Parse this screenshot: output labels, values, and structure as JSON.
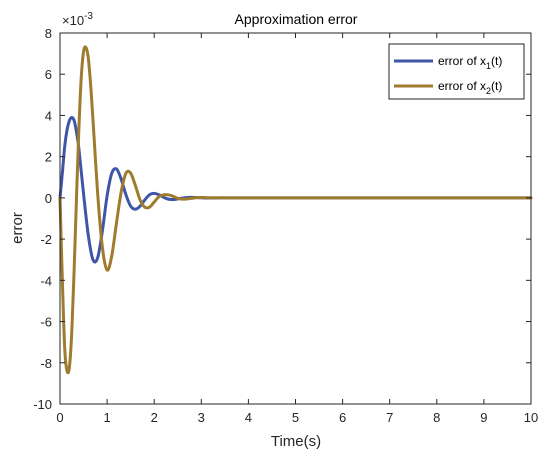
{
  "chart_data": {
    "type": "line",
    "title": "Approximation error",
    "xlabel": "Time(s)",
    "ylabel": "error",
    "exponent_label": "×10",
    "exponent_value": "-3",
    "xlim": [
      0,
      10
    ],
    "ylim": [
      -10,
      8
    ],
    "xticks": [
      "0",
      "1",
      "2",
      "3",
      "4",
      "5",
      "6",
      "7",
      "8",
      "9",
      "10"
    ],
    "yticks": [
      "-10",
      "-8",
      "-6",
      "-4",
      "-2",
      "0",
      "2",
      "4",
      "6",
      "8"
    ],
    "legend_position": "top-right",
    "grid": false,
    "series": [
      {
        "name_prefix": "error of x",
        "name_sub": "1",
        "name_suffix": "(t)",
        "color": "#3f55a8",
        "x": [
          0,
          0.05,
          0.1,
          0.15,
          0.2,
          0.25,
          0.3,
          0.35,
          0.4,
          0.5,
          0.6,
          0.7,
          0.8,
          0.9,
          1.0,
          1.1,
          1.2,
          1.3,
          1.4,
          1.5,
          1.6,
          1.7,
          1.8,
          1.9,
          2.0,
          2.1,
          2.2,
          2.3,
          2.4,
          2.5,
          2.6,
          2.7,
          2.8,
          2.9,
          3.0,
          3.2,
          3.4,
          3.6,
          4.0,
          5.0,
          10.0
        ],
        "y": [
          0,
          1.2,
          2.5,
          3.3,
          3.75,
          3.9,
          3.75,
          3.2,
          2.4,
          0.2,
          -1.8,
          -3.0,
          -2.9,
          -1.6,
          0.1,
          1.2,
          1.4,
          0.9,
          0.15,
          -0.4,
          -0.55,
          -0.4,
          -0.1,
          0.15,
          0.22,
          0.15,
          0.03,
          -0.06,
          -0.08,
          -0.05,
          -0.01,
          0.02,
          0.025,
          0.015,
          0.005,
          -0.005,
          0,
          0,
          0,
          0,
          0
        ]
      },
      {
        "name_prefix": "error of x",
        "name_sub": "2",
        "name_suffix": "(t)",
        "color": "#9e7b2d",
        "x": [
          0,
          0.05,
          0.1,
          0.15,
          0.2,
          0.25,
          0.3,
          0.35,
          0.4,
          0.45,
          0.5,
          0.55,
          0.6,
          0.65,
          0.7,
          0.8,
          0.9,
          1.0,
          1.1,
          1.2,
          1.3,
          1.4,
          1.5,
          1.6,
          1.7,
          1.8,
          1.9,
          2.0,
          2.1,
          2.2,
          2.3,
          2.4,
          2.5,
          2.6,
          2.7,
          2.8,
          2.9,
          3.0,
          3.2,
          3.5,
          4.0,
          5.0,
          10.0
        ],
        "y": [
          0,
          -4.0,
          -7.3,
          -8.4,
          -8.2,
          -6.5,
          -3.5,
          0.0,
          3.3,
          5.8,
          7.1,
          7.3,
          6.8,
          5.5,
          3.8,
          0.2,
          -2.4,
          -3.5,
          -2.8,
          -1.2,
          0.3,
          1.2,
          1.2,
          0.6,
          -0.1,
          -0.45,
          -0.45,
          -0.2,
          0.05,
          0.15,
          0.15,
          0.08,
          -0.02,
          -0.06,
          -0.05,
          -0.02,
          0.01,
          0.02,
          0.005,
          0,
          0,
          0,
          0
        ]
      }
    ]
  }
}
